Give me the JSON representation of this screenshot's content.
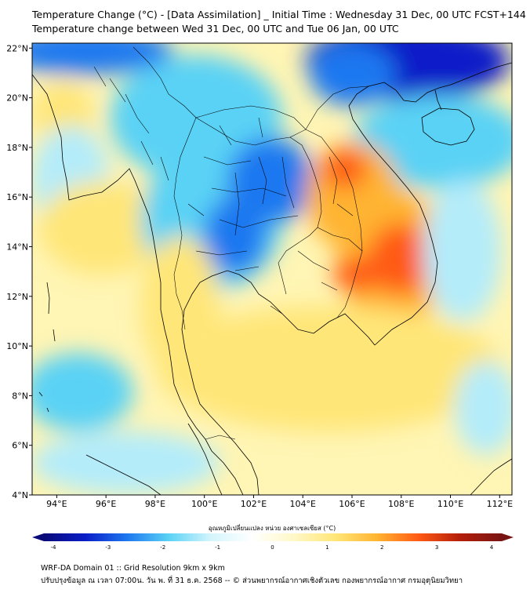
{
  "header": {
    "title_line1": "Temperature Change (°C) - [Data Assimilation] _ Initial Time : Wednesday 31 Dec, 00 UTC FCST+144",
    "title_line2": "Temperature change between Wed 31 Dec, 00 UTC and Tue 06 Jan, 00 UTC"
  },
  "map": {
    "lon_range": [
      93,
      112.5
    ],
    "lat_range": [
      4,
      22.2
    ],
    "lon_ticks": [
      {
        "value": 94,
        "label": "94°E"
      },
      {
        "value": 96,
        "label": "96°E"
      },
      {
        "value": 98,
        "label": "98°E"
      },
      {
        "value": 100,
        "label": "100°E"
      },
      {
        "value": 102,
        "label": "102°E"
      },
      {
        "value": 104,
        "label": "104°E"
      },
      {
        "value": 106,
        "label": "106°E"
      },
      {
        "value": 108,
        "label": "108°E"
      },
      {
        "value": 110,
        "label": "110°E"
      },
      {
        "value": 112,
        "label": "112°E"
      }
    ],
    "lat_ticks": [
      {
        "value": 22,
        "label": "22°N"
      },
      {
        "value": 20,
        "label": "20°N"
      },
      {
        "value": 18,
        "label": "18°N"
      },
      {
        "value": 16,
        "label": "16°N"
      },
      {
        "value": 14,
        "label": "14°N"
      },
      {
        "value": 12,
        "label": "12°N"
      },
      {
        "value": 10,
        "label": "10°N"
      },
      {
        "value": 8,
        "label": "8°N"
      },
      {
        "value": 6,
        "label": "6°N"
      },
      {
        "value": 4,
        "label": "4°N"
      }
    ],
    "colors": {
      "strong_cold": "#0a1ec8",
      "cold": "#1e78f0",
      "cool": "#5ad2f5",
      "slight_cool": "#b4ecfa",
      "neutral": "#ffffff",
      "slight_warm": "#fff5b4",
      "warm": "#ffe678",
      "hot": "#ffb432",
      "very_hot": "#ff5a14",
      "extreme": "#b41e0a"
    }
  },
  "colorbar": {
    "title": "อุณหภูมิเปลี่ยนแปลง หน่วย องศาเซลเซียส (°C)",
    "min": -4,
    "max": 4,
    "ticks": [
      {
        "value": -4,
        "label": "-4"
      },
      {
        "value": -3,
        "label": "-3"
      },
      {
        "value": -2,
        "label": "-2"
      },
      {
        "value": -1,
        "label": "-1"
      },
      {
        "value": 0,
        "label": "0"
      },
      {
        "value": 1,
        "label": "1"
      },
      {
        "value": 2,
        "label": "2"
      },
      {
        "value": 3,
        "label": "3"
      },
      {
        "value": 4,
        "label": "4"
      }
    ],
    "stops": [
      "#0a0a78",
      "#0a1ec8",
      "#1e78f0",
      "#5ad2f5",
      "#d2f5fc",
      "#ffffff",
      "#fff8c8",
      "#ffe678",
      "#ffb432",
      "#ff5a14",
      "#b41e0a",
      "#781414"
    ]
  },
  "footer": {
    "line1": "WRF-DA Domain 01 :: Grid Resolution 9km x 9km",
    "line2": "ปรับปรุงข้อมูล ณ เวลา 07:00น. วัน พ. ที่ 31 ธ.ค. 2568 -- © ส่วนพยากรณ์อากาศเชิงตัวเลข กองพยากรณ์อากาศ กรมอุตุนิยมวิทยา"
  }
}
